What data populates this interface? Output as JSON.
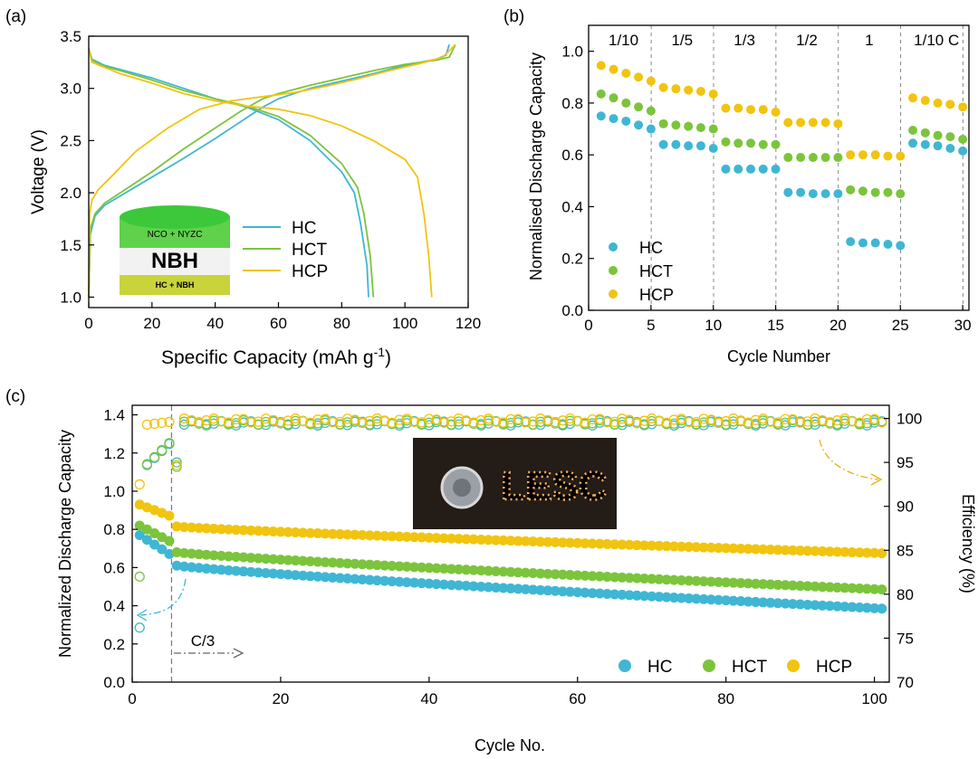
{
  "colors": {
    "HC": "#3fb6d3",
    "HCT": "#7bc43c",
    "HCP": "#f1c40f",
    "HC_light": "#8fd8ea",
    "HCT_light": "#b6e286",
    "HCP_light": "#f7dd6b"
  },
  "inset_cylinder": {
    "top_text": "NCO + NYZC",
    "middle_text": "NBH",
    "bottom_text": "HC + NBH"
  },
  "inset_photo": {
    "text": "LESC"
  },
  "chart_data": [
    {
      "panel": "(a)",
      "type": "line",
      "xlabel": "Specific Capacity (mAh g",
      "xlabel_sup": "-1",
      "xlabel_end": ")",
      "ylabel": "Voltage (V)",
      "xlim": [
        0,
        120
      ],
      "ylim": [
        0.9,
        3.5
      ],
      "xticks": [
        "0",
        "20",
        "40",
        "60",
        "80",
        "100",
        "120"
      ],
      "yticks": [
        "1.0",
        "1.5",
        "2.0",
        "2.5",
        "3.0",
        "3.5"
      ],
      "legend_position": "center",
      "series": [
        {
          "name": "HC",
          "color": "#3fb6d3",
          "charge": [
            [
              0,
              1.0
            ],
            [
              0.5,
              1.6
            ],
            [
              2,
              1.78
            ],
            [
              5,
              1.88
            ],
            [
              10,
              1.97
            ],
            [
              20,
              2.15
            ],
            [
              30,
              2.33
            ],
            [
              40,
              2.52
            ],
            [
              50,
              2.72
            ],
            [
              55,
              2.82
            ],
            [
              60,
              2.9
            ],
            [
              70,
              3.0
            ],
            [
              80,
              3.07
            ],
            [
              90,
              3.14
            ],
            [
              100,
              3.22
            ],
            [
              110,
              3.28
            ],
            [
              113,
              3.32
            ],
            [
              114,
              3.42
            ]
          ],
          "discharge": [
            [
              0,
              3.38
            ],
            [
              1,
              3.28
            ],
            [
              5,
              3.22
            ],
            [
              10,
              3.18
            ],
            [
              20,
              3.1
            ],
            [
              30,
              3.0
            ],
            [
              40,
              2.9
            ],
            [
              50,
              2.82
            ],
            [
              60,
              2.7
            ],
            [
              70,
              2.5
            ],
            [
              80,
              2.2
            ],
            [
              84,
              2.0
            ],
            [
              86,
              1.7
            ],
            [
              88,
              1.3
            ],
            [
              88.5,
              1.0
            ]
          ]
        },
        {
          "name": "HCT",
          "color": "#7bc43c",
          "charge": [
            [
              0,
              1.0
            ],
            [
              0.5,
              1.65
            ],
            [
              2,
              1.8
            ],
            [
              5,
              1.9
            ],
            [
              10,
              2.0
            ],
            [
              20,
              2.2
            ],
            [
              30,
              2.42
            ],
            [
              40,
              2.62
            ],
            [
              48,
              2.78
            ],
            [
              55,
              2.9
            ],
            [
              60,
              2.95
            ],
            [
              70,
              3.03
            ],
            [
              80,
              3.1
            ],
            [
              90,
              3.17
            ],
            [
              100,
              3.23
            ],
            [
              110,
              3.27
            ],
            [
              114,
              3.3
            ],
            [
              116,
              3.42
            ]
          ],
          "discharge": [
            [
              0,
              3.38
            ],
            [
              1,
              3.27
            ],
            [
              5,
              3.21
            ],
            [
              10,
              3.17
            ],
            [
              20,
              3.08
            ],
            [
              30,
              2.98
            ],
            [
              40,
              2.9
            ],
            [
              50,
              2.83
            ],
            [
              60,
              2.73
            ],
            [
              70,
              2.55
            ],
            [
              80,
              2.28
            ],
            [
              85,
              2.05
            ],
            [
              87,
              1.8
            ],
            [
              89,
              1.4
            ],
            [
              90,
              1.0
            ]
          ]
        },
        {
          "name": "HCP",
          "color": "#f1c40f",
          "charge": [
            [
              0,
              1.0
            ],
            [
              0.3,
              1.8
            ],
            [
              1,
              1.93
            ],
            [
              3,
              2.03
            ],
            [
              7,
              2.15
            ],
            [
              15,
              2.4
            ],
            [
              25,
              2.62
            ],
            [
              35,
              2.8
            ],
            [
              45,
              2.88
            ],
            [
              55,
              2.92
            ],
            [
              65,
              2.96
            ],
            [
              75,
              3.02
            ],
            [
              85,
              3.09
            ],
            [
              95,
              3.17
            ],
            [
              105,
              3.24
            ],
            [
              112,
              3.3
            ],
            [
              116,
              3.42
            ]
          ],
          "discharge": [
            [
              0,
              3.38
            ],
            [
              1,
              3.25
            ],
            [
              5,
              3.2
            ],
            [
              10,
              3.14
            ],
            [
              20,
              3.05
            ],
            [
              30,
              2.95
            ],
            [
              40,
              2.88
            ],
            [
              50,
              2.83
            ],
            [
              60,
              2.8
            ],
            [
              70,
              2.74
            ],
            [
              80,
              2.64
            ],
            [
              90,
              2.5
            ],
            [
              100,
              2.32
            ],
            [
              104,
              2.15
            ],
            [
              106,
              1.8
            ],
            [
              107.5,
              1.4
            ],
            [
              108.5,
              1.0
            ]
          ]
        }
      ]
    },
    {
      "panel": "(b)",
      "type": "scatter",
      "xlabel": "Cycle Number",
      "ylabel": "Normalised Discharge Capacity",
      "xlim": [
        0,
        30.5
      ],
      "ylim": [
        0,
        1.1
      ],
      "xticks": [
        "0",
        "5",
        "10",
        "15",
        "20",
        "25",
        "30"
      ],
      "yticks": [
        "0.0",
        "0.2",
        "0.4",
        "0.6",
        "0.8",
        "1.0"
      ],
      "rate_labels": [
        "1/10",
        "1/5",
        "1/3",
        "1/2",
        "1",
        "1/10 C"
      ],
      "legend_position": "bottom-left",
      "x": [
        1,
        2,
        3,
        4,
        5,
        6,
        7,
        8,
        9,
        10,
        11,
        12,
        13,
        14,
        15,
        16,
        17,
        18,
        19,
        20,
        21,
        22,
        23,
        24,
        25,
        26,
        27,
        28,
        29,
        30
      ],
      "series": [
        {
          "name": "HC",
          "color": "#3fb6d3",
          "values": [
            0.75,
            0.74,
            0.73,
            0.715,
            0.7,
            0.64,
            0.64,
            0.635,
            0.635,
            0.625,
            0.545,
            0.545,
            0.545,
            0.545,
            0.545,
            0.455,
            0.455,
            0.45,
            0.45,
            0.45,
            0.265,
            0.26,
            0.26,
            0.255,
            0.25,
            0.645,
            0.64,
            0.635,
            0.625,
            0.615
          ]
        },
        {
          "name": "HCT",
          "color": "#7bc43c",
          "values": [
            0.835,
            0.82,
            0.8,
            0.785,
            0.77,
            0.72,
            0.715,
            0.71,
            0.705,
            0.7,
            0.65,
            0.645,
            0.645,
            0.64,
            0.64,
            0.59,
            0.59,
            0.59,
            0.59,
            0.59,
            0.465,
            0.46,
            0.455,
            0.455,
            0.45,
            0.695,
            0.685,
            0.675,
            0.67,
            0.66
          ]
        },
        {
          "name": "HCP",
          "color": "#f1c40f",
          "values": [
            0.945,
            0.93,
            0.915,
            0.9,
            0.885,
            0.86,
            0.855,
            0.85,
            0.845,
            0.835,
            0.78,
            0.78,
            0.775,
            0.775,
            0.765,
            0.725,
            0.725,
            0.725,
            0.725,
            0.72,
            0.6,
            0.6,
            0.6,
            0.595,
            0.595,
            0.82,
            0.81,
            0.8,
            0.795,
            0.785
          ]
        }
      ]
    },
    {
      "panel": "(c)",
      "type": "scatter",
      "xlabel": "Cycle No.",
      "ylabel": "Normalized Discharge Capacity",
      "ylabel_right": "Efficiency (%)",
      "xlim": [
        0,
        102
      ],
      "ylim": [
        0,
        1.45
      ],
      "ylim_right": [
        70,
        101.5
      ],
      "xticks": [
        "0",
        "20",
        "40",
        "60",
        "80",
        "100"
      ],
      "yticks": [
        "0.0",
        "0.2",
        "0.4",
        "0.6",
        "0.8",
        "1.0",
        "1.2",
        "1.4"
      ],
      "yticks_right": [
        "70",
        "75",
        "80",
        "85",
        "90",
        "95",
        "100"
      ],
      "annotation": "C/3",
      "legend_position": "bottom-right",
      "cycles": 101,
      "series": [
        {
          "name": "HC",
          "color": "#3fb6d3",
          "capacity_start": 0.77,
          "capacity_c3_start": 0.61,
          "capacity_end": 0.385,
          "efficiency_first": 76.2,
          "efficiency_stable": 99.6
        },
        {
          "name": "HCT",
          "color": "#7bc43c",
          "capacity_start": 0.82,
          "capacity_c3_start": 0.68,
          "capacity_end": 0.485,
          "efficiency_first": 82.0,
          "efficiency_stable": 99.7
        },
        {
          "name": "HCP",
          "color": "#f1c40f",
          "capacity_start": 0.93,
          "capacity_c3_start": 0.815,
          "capacity_end": 0.675,
          "efficiency_first": 92.5,
          "efficiency_stable": 99.9
        }
      ]
    }
  ],
  "panel_labels": [
    "(a)",
    "(b)",
    "(c)"
  ]
}
